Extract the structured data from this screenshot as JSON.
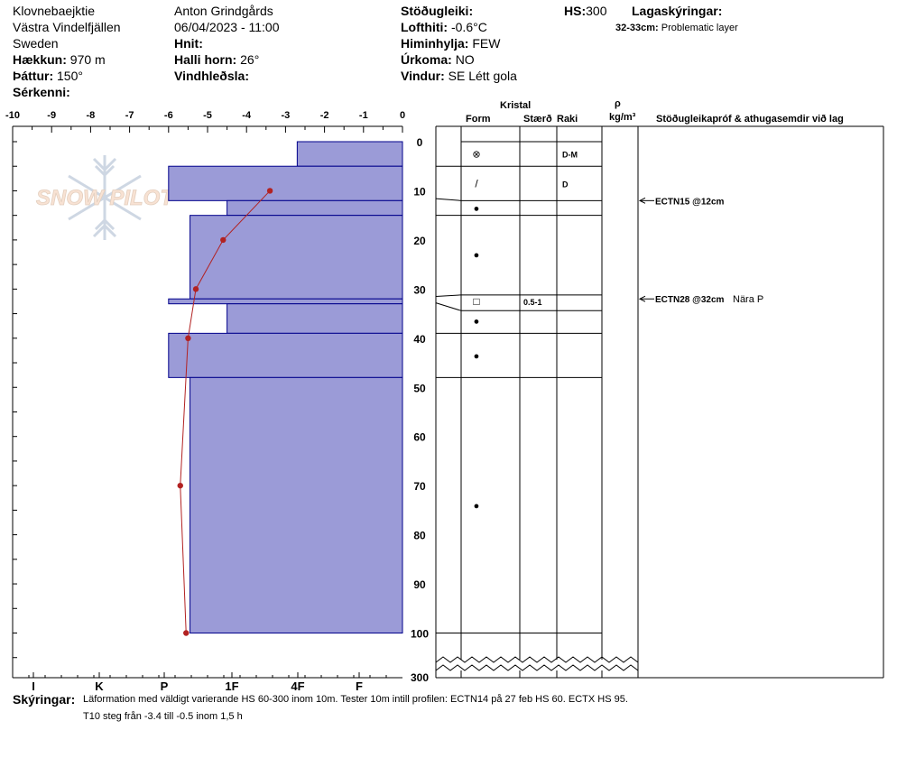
{
  "header": {
    "location": "Klovnebaejktie",
    "region": "Västra Vindelfjällen",
    "country": "Sweden",
    "observer": "Anton Grindgårds",
    "datetime": "06/04/2023 - 11:00",
    "elevation_label": "Hækkun:",
    "elevation_value": "970 m",
    "aspect_label": "Þáttur:",
    "aspect_value": "150°",
    "features_label": "Sérkenni:",
    "coords_label": "Hnit:",
    "slope_label": "Halli horn:",
    "slope_value": "26°",
    "wind_loading_label": "Vindhleðsla:",
    "stability_label": "Stöðugleiki:",
    "air_temp_label": "Lofthiti:",
    "air_temp_value": "-0.6°C",
    "sky_label": "Himinhylja:",
    "sky_value": "FEW",
    "precip_label": "Úrkoma:",
    "precip_value": "NO",
    "wind_label": "Vindur:",
    "wind_value": "SE  Létt gola",
    "hs_label": "HS:",
    "hs_value": "300",
    "layer_notes_label": "Lagaskýringar:",
    "layer_note_depth": "32-33cm:",
    "layer_note_text": "Problematic layer"
  },
  "columns": {
    "crystal": "Kristal",
    "form": "Form",
    "size": "Stærð",
    "moisture": "Raki",
    "density_symbol": "ρ",
    "density_unit": "kg/m³",
    "stability_tests": "Stöðugleikapróf & athugasemdir við lag"
  },
  "logo_text": "SNOW PILOT",
  "footer": {
    "label": "Skýringar:",
    "line1": "Läformation med väldigt varierande HS 60-300 inom 10m. Tester 10m intill profilen: ECTN14 på 27 feb HS 60. ECTX HS 95.",
    "line2": "T10 steg från -3.4 till -0.5 inom 1,5 h"
  },
  "chart_data": {
    "type": "snow-profile",
    "temperature_axis": {
      "ticks": [
        "-10",
        "-9",
        "-8",
        "-7",
        "-6",
        "-5",
        "-4",
        "-3",
        "-2",
        "-1",
        "0"
      ],
      "range": [
        -10,
        0
      ]
    },
    "hardness_axis": {
      "ticks": [
        "I",
        "K",
        "P",
        "1F",
        "4F",
        "F"
      ]
    },
    "depth_axis": {
      "ticks": [
        "0",
        "10",
        "20",
        "30",
        "40",
        "50",
        "60",
        "70",
        "80",
        "90",
        "100"
      ],
      "bottom_label": "300",
      "unit": "cm"
    },
    "hardness_layers": [
      {
        "top": 0,
        "bottom": 5,
        "temp_extent": -2.7
      },
      {
        "top": 5,
        "bottom": 12,
        "temp_extent": -6.0
      },
      {
        "top": 12,
        "bottom": 15,
        "temp_extent": -4.5
      },
      {
        "top": 15,
        "bottom": 32,
        "temp_extent": -5.45
      },
      {
        "top": 32,
        "bottom": 33,
        "temp_extent": -6.0
      },
      {
        "top": 33,
        "bottom": 39,
        "temp_extent": -4.5
      },
      {
        "top": 39,
        "bottom": 48,
        "temp_extent": -6.0
      },
      {
        "top": 48,
        "bottom": 100,
        "temp_extent": -5.45
      }
    ],
    "temperature_profile": [
      {
        "depth": 10,
        "temp": -3.4
      },
      {
        "depth": 20,
        "temp": -4.6
      },
      {
        "depth": 30,
        "temp": -5.3
      },
      {
        "depth": 40,
        "temp": -5.5
      },
      {
        "depth": 70,
        "temp": -5.7
      },
      {
        "depth": 100,
        "temp": -5.55
      }
    ],
    "layer_boundaries": [
      5,
      12,
      15,
      31,
      34,
      39,
      48,
      100
    ],
    "crystal_rows": [
      {
        "depth": 2.5,
        "form": "⊗",
        "size": "",
        "moisture": "D-M"
      },
      {
        "depth": 8.5,
        "form": "/",
        "size": "",
        "moisture": "D"
      },
      {
        "depth": 13.5,
        "form": "●",
        "size": "",
        "moisture": ""
      },
      {
        "depth": 23,
        "form": "●",
        "size": "",
        "moisture": ""
      },
      {
        "depth": 32.5,
        "form": "□",
        "size": "0.5-1",
        "moisture": ""
      },
      {
        "depth": 36.5,
        "form": "●",
        "size": "",
        "moisture": ""
      },
      {
        "depth": 43.5,
        "form": "●",
        "size": "",
        "moisture": ""
      },
      {
        "depth": 74,
        "form": "●",
        "size": "",
        "moisture": ""
      }
    ],
    "stability_tests": [
      {
        "depth": 12,
        "result": "ECTN15 @12cm",
        "note": ""
      },
      {
        "depth": 32,
        "result": "ECTN28 @32cm",
        "note": "Nära P"
      }
    ],
    "colors": {
      "layer_fill": "#9b9bd7",
      "layer_stroke": "#00008b",
      "temp_line": "#b22222"
    }
  }
}
